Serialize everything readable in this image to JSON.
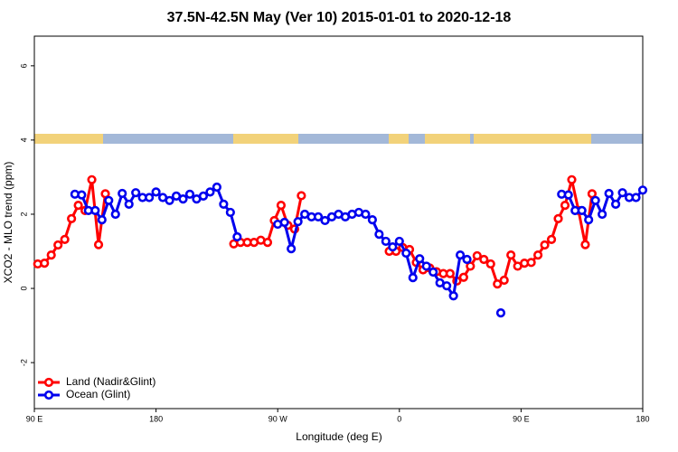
{
  "chart_data": {
    "type": "line",
    "title": "37.5N-42.5N May (Ver 10)   2015-01-01 to 2020-12-18",
    "x_label": "Longitude (deg E)",
    "y_label": "XCO2 - MLO trend (ppm)",
    "xlim": [
      90,
      540
    ],
    "ylim": [
      -3.24,
      6.8
    ],
    "xticks": [
      {
        "value": 90,
        "label": "90 E"
      },
      {
        "value": 180,
        "label": "180"
      },
      {
        "value": 270,
        "label": "90 W"
      },
      {
        "value": 360,
        "label": "0"
      },
      {
        "value": 450,
        "label": "90 E"
      },
      {
        "value": 540,
        "label": "180"
      }
    ],
    "yticks": [
      -2,
      0,
      2,
      4,
      6
    ],
    "grid": false,
    "legend": "bottom-left",
    "series": [
      {
        "name": "Land (Nadir&Glint)",
        "color": "#ff0000",
        "x": [
          92.5,
          97.5,
          102.5,
          107.5,
          112.5,
          117.5,
          122.5,
          127.5,
          132.5,
          137.5,
          142.5,
          147.5,
          237.5,
          242.5,
          247.5,
          252.5,
          257.5,
          262.5,
          267.5,
          272.5,
          277.5,
          282.5,
          287.5,
          292.5,
          352.5,
          357.5,
          362.5,
          367.5,
          372.5,
          377.5,
          382.5,
          387.5,
          392.5,
          397.5,
          402.5,
          407.5,
          412.5,
          417.5,
          422.5,
          427.5,
          432.5,
          437.5,
          442.5,
          447.5,
          452.5,
          457.5,
          462.5,
          467.5,
          472.5,
          477.5,
          482.5,
          487.5,
          492.5,
          497.5,
          502.5
        ],
        "values": [
          0.66,
          0.68,
          0.9,
          1.17,
          1.32,
          1.88,
          2.24,
          2.1,
          2.93,
          1.18,
          2.55,
          null,
          1.2,
          1.24,
          1.24,
          1.24,
          1.3,
          1.24,
          1.83,
          2.24,
          1.7,
          1.6,
          2.5,
          null,
          1.0,
          1.0,
          1.1,
          1.05,
          0.7,
          0.5,
          0.55,
          0.45,
          0.4,
          0.4,
          0.2,
          0.3,
          0.6,
          0.88,
          0.78,
          0.66,
          0.12,
          0.22,
          0.9,
          0.6,
          0.68,
          0.7,
          0.9,
          1.17,
          1.32,
          1.88,
          2.24,
          2.93,
          2.1,
          1.18,
          2.55
        ]
      },
      {
        "name": "Ocean (Glint)",
        "color": "#0000ee",
        "x": [
          120,
          125,
          130,
          135,
          140,
          145,
          150,
          155,
          160,
          165,
          170,
          175,
          180,
          185,
          190,
          195,
          200,
          205,
          210,
          215,
          220,
          225,
          230,
          235,
          240,
          245,
          270,
          275,
          280,
          285,
          290,
          295,
          300,
          305,
          310,
          315,
          320,
          325,
          330,
          335,
          340,
          345,
          350,
          355,
          360,
          365,
          370,
          375,
          380,
          385,
          390,
          395,
          400,
          405,
          410,
          415,
          435,
          440,
          480,
          485,
          490,
          495,
          500,
          505,
          510,
          515,
          520,
          525,
          530,
          535,
          540
        ],
        "values": [
          2.54,
          2.52,
          2.1,
          2.1,
          1.85,
          2.37,
          2.0,
          2.56,
          2.27,
          2.58,
          2.45,
          2.45,
          2.6,
          2.45,
          2.37,
          2.49,
          2.41,
          2.54,
          2.41,
          2.49,
          2.6,
          2.73,
          2.27,
          2.05,
          1.39,
          null,
          1.73,
          1.78,
          1.07,
          1.8,
          2.0,
          1.93,
          1.93,
          1.83,
          1.93,
          2.0,
          1.93,
          2.0,
          2.05,
          2.0,
          1.85,
          1.46,
          1.27,
          1.12,
          1.27,
          0.95,
          0.29,
          0.8,
          0.6,
          0.44,
          0.15,
          0.07,
          -0.2,
          0.9,
          0.78,
          null,
          -0.66,
          null,
          2.54,
          2.52,
          2.1,
          2.1,
          1.85,
          2.37,
          2.0,
          2.56,
          2.27,
          2.58,
          2.45,
          2.45,
          2.65
        ]
      }
    ]
  }
}
